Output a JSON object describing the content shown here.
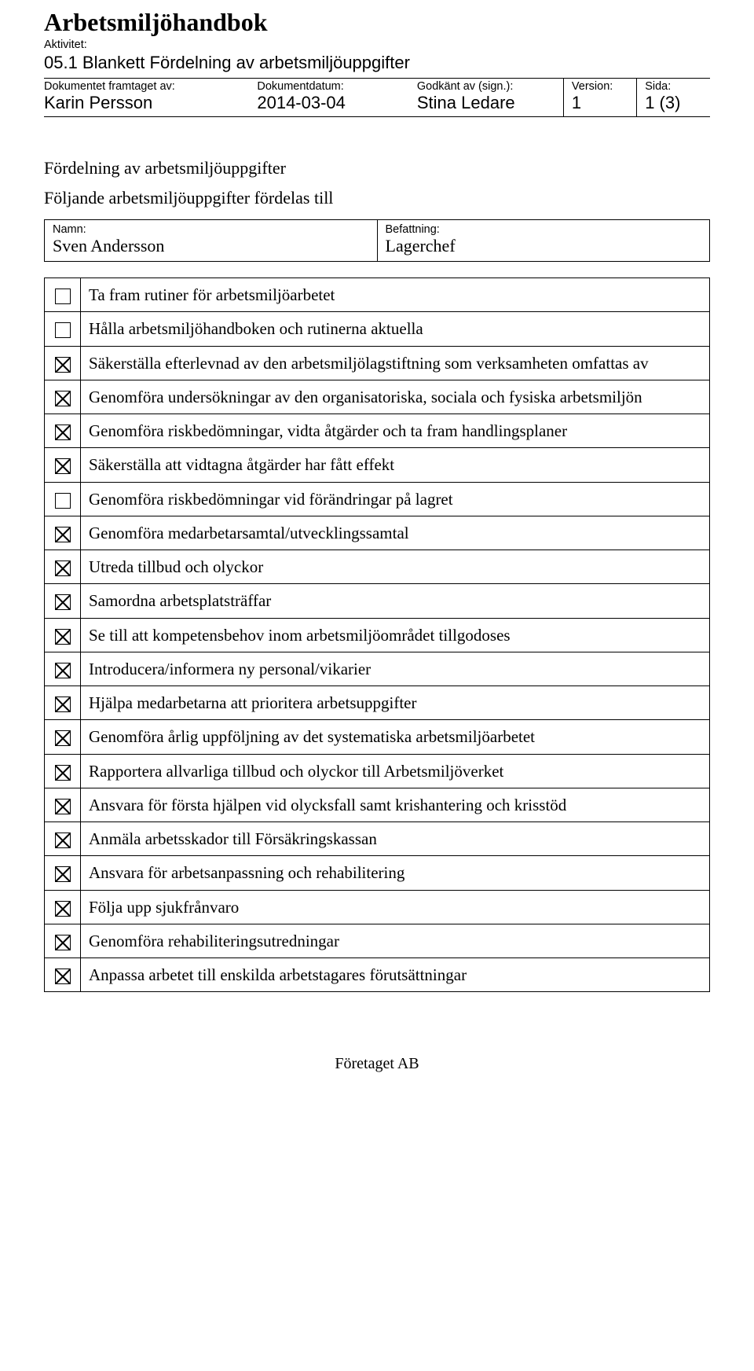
{
  "header": {
    "title": "Arbetsmiljöhandbok",
    "activity_label": "Aktivitet:",
    "activity_value": "05.1 Blankett Fördelning av arbetsmiljöuppgifter"
  },
  "meta": {
    "labels": {
      "author": "Dokumentet framtaget av:",
      "date": "Dokumentdatum:",
      "approved": "Godkänt av (sign.):",
      "version": "Version:",
      "page": "Sida:"
    },
    "values": {
      "author": "Karin Persson",
      "date": "2014-03-04",
      "approved": "Stina Ledare",
      "version": "1",
      "page": "1 (3)"
    }
  },
  "section": {
    "heading": "Fördelning av arbetsmiljöuppgifter",
    "intro": "Följande arbetsmiljöuppgifter fördelas till"
  },
  "assignee": {
    "name_label": "Namn:",
    "name_value": "Sven Andersson",
    "role_label": "Befattning:",
    "role_value": "Lagerchef"
  },
  "tasks": [
    {
      "checked": false,
      "text": "Ta fram rutiner för arbetsmiljöarbetet"
    },
    {
      "checked": false,
      "text": "Hålla arbetsmiljöhandboken och rutinerna aktuella"
    },
    {
      "checked": true,
      "text": "Säkerställa efterlevnad av den arbetsmiljölagstiftning som verksamheten omfattas av"
    },
    {
      "checked": true,
      "text": "Genomföra undersökningar av den organisatoriska, sociala och fysiska arbetsmiljön"
    },
    {
      "checked": true,
      "text": "Genomföra riskbedömningar, vidta åtgärder och ta fram handlingsplaner"
    },
    {
      "checked": true,
      "text": "Säkerställa att vidtagna åtgärder har fått effekt"
    },
    {
      "checked": false,
      "text": "Genomföra riskbedömningar vid förändringar på lagret"
    },
    {
      "checked": true,
      "text": "Genomföra medarbetarsamtal/utvecklingssamtal"
    },
    {
      "checked": true,
      "text": "Utreda tillbud och olyckor"
    },
    {
      "checked": true,
      "text": "Samordna arbetsplatsträffar"
    },
    {
      "checked": true,
      "text": "Se till att kompetensbehov inom arbetsmiljöområdet tillgodoses"
    },
    {
      "checked": true,
      "text": "Introducera/informera ny personal/vikarier"
    },
    {
      "checked": true,
      "text": "Hjälpa medarbetarna att prioritera arbetsuppgifter"
    },
    {
      "checked": true,
      "text": "Genomföra årlig uppföljning av det systematiska arbetsmiljöarbetet"
    },
    {
      "checked": true,
      "text": "Rapportera allvarliga tillbud och olyckor till Arbetsmiljöverket"
    },
    {
      "checked": true,
      "text": "Ansvara för första hjälpen vid olycksfall samt krishantering och krisstöd"
    },
    {
      "checked": true,
      "text": "Anmäla arbetsskador till Försäkringskassan"
    },
    {
      "checked": true,
      "text": "Ansvara för arbetsanpassning och rehabilitering"
    },
    {
      "checked": true,
      "text": "Följa upp sjukfrånvaro"
    },
    {
      "checked": true,
      "text": "Genomföra rehabiliteringsutredningar"
    },
    {
      "checked": true,
      "text": "Anpassa arbetet till enskilda arbetstagares förutsättningar"
    }
  ],
  "footer": "Företaget AB"
}
